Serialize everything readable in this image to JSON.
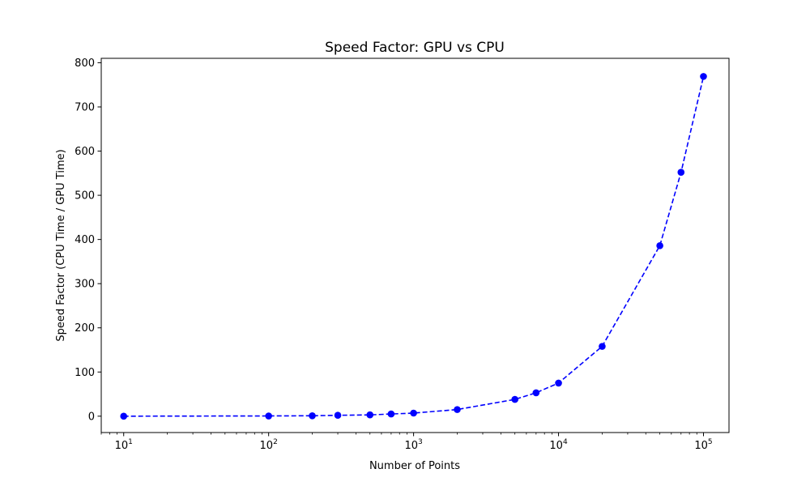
{
  "chart_data": {
    "type": "line",
    "title": "Speed Factor: GPU vs CPU",
    "xlabel": "Number of Points",
    "ylabel": "Speed Factor (CPU Time / GPU Time)",
    "x_scale": "log",
    "xlim": [
      7,
      150000
    ],
    "ylim": [
      -37,
      810
    ],
    "x_ticks": [
      {
        "value": 10,
        "base": "10",
        "exp": "1"
      },
      {
        "value": 100,
        "base": "10",
        "exp": "2"
      },
      {
        "value": 1000,
        "base": "10",
        "exp": "3"
      },
      {
        "value": 10000,
        "base": "10",
        "exp": "4"
      },
      {
        "value": 100000,
        "base": "10",
        "exp": "5"
      }
    ],
    "y_ticks": [
      0,
      100,
      200,
      300,
      400,
      500,
      600,
      700,
      800
    ],
    "y_tick_labels": [
      "0",
      "100",
      "200",
      "300",
      "400",
      "500",
      "600",
      "700",
      "800"
    ],
    "grid": false,
    "series": [
      {
        "color": "#0000ff",
        "line_style": "dashed",
        "marker": "circle",
        "x": [
          10,
          100,
          200,
          300,
          500,
          700,
          1000,
          2000,
          5000,
          7000,
          10000,
          20000,
          50000,
          70000,
          100000
        ],
        "y": [
          0,
          0.5,
          1,
          2,
          3,
          5,
          7,
          15,
          38,
          53,
          75,
          158,
          386,
          552,
          769
        ]
      }
    ]
  }
}
